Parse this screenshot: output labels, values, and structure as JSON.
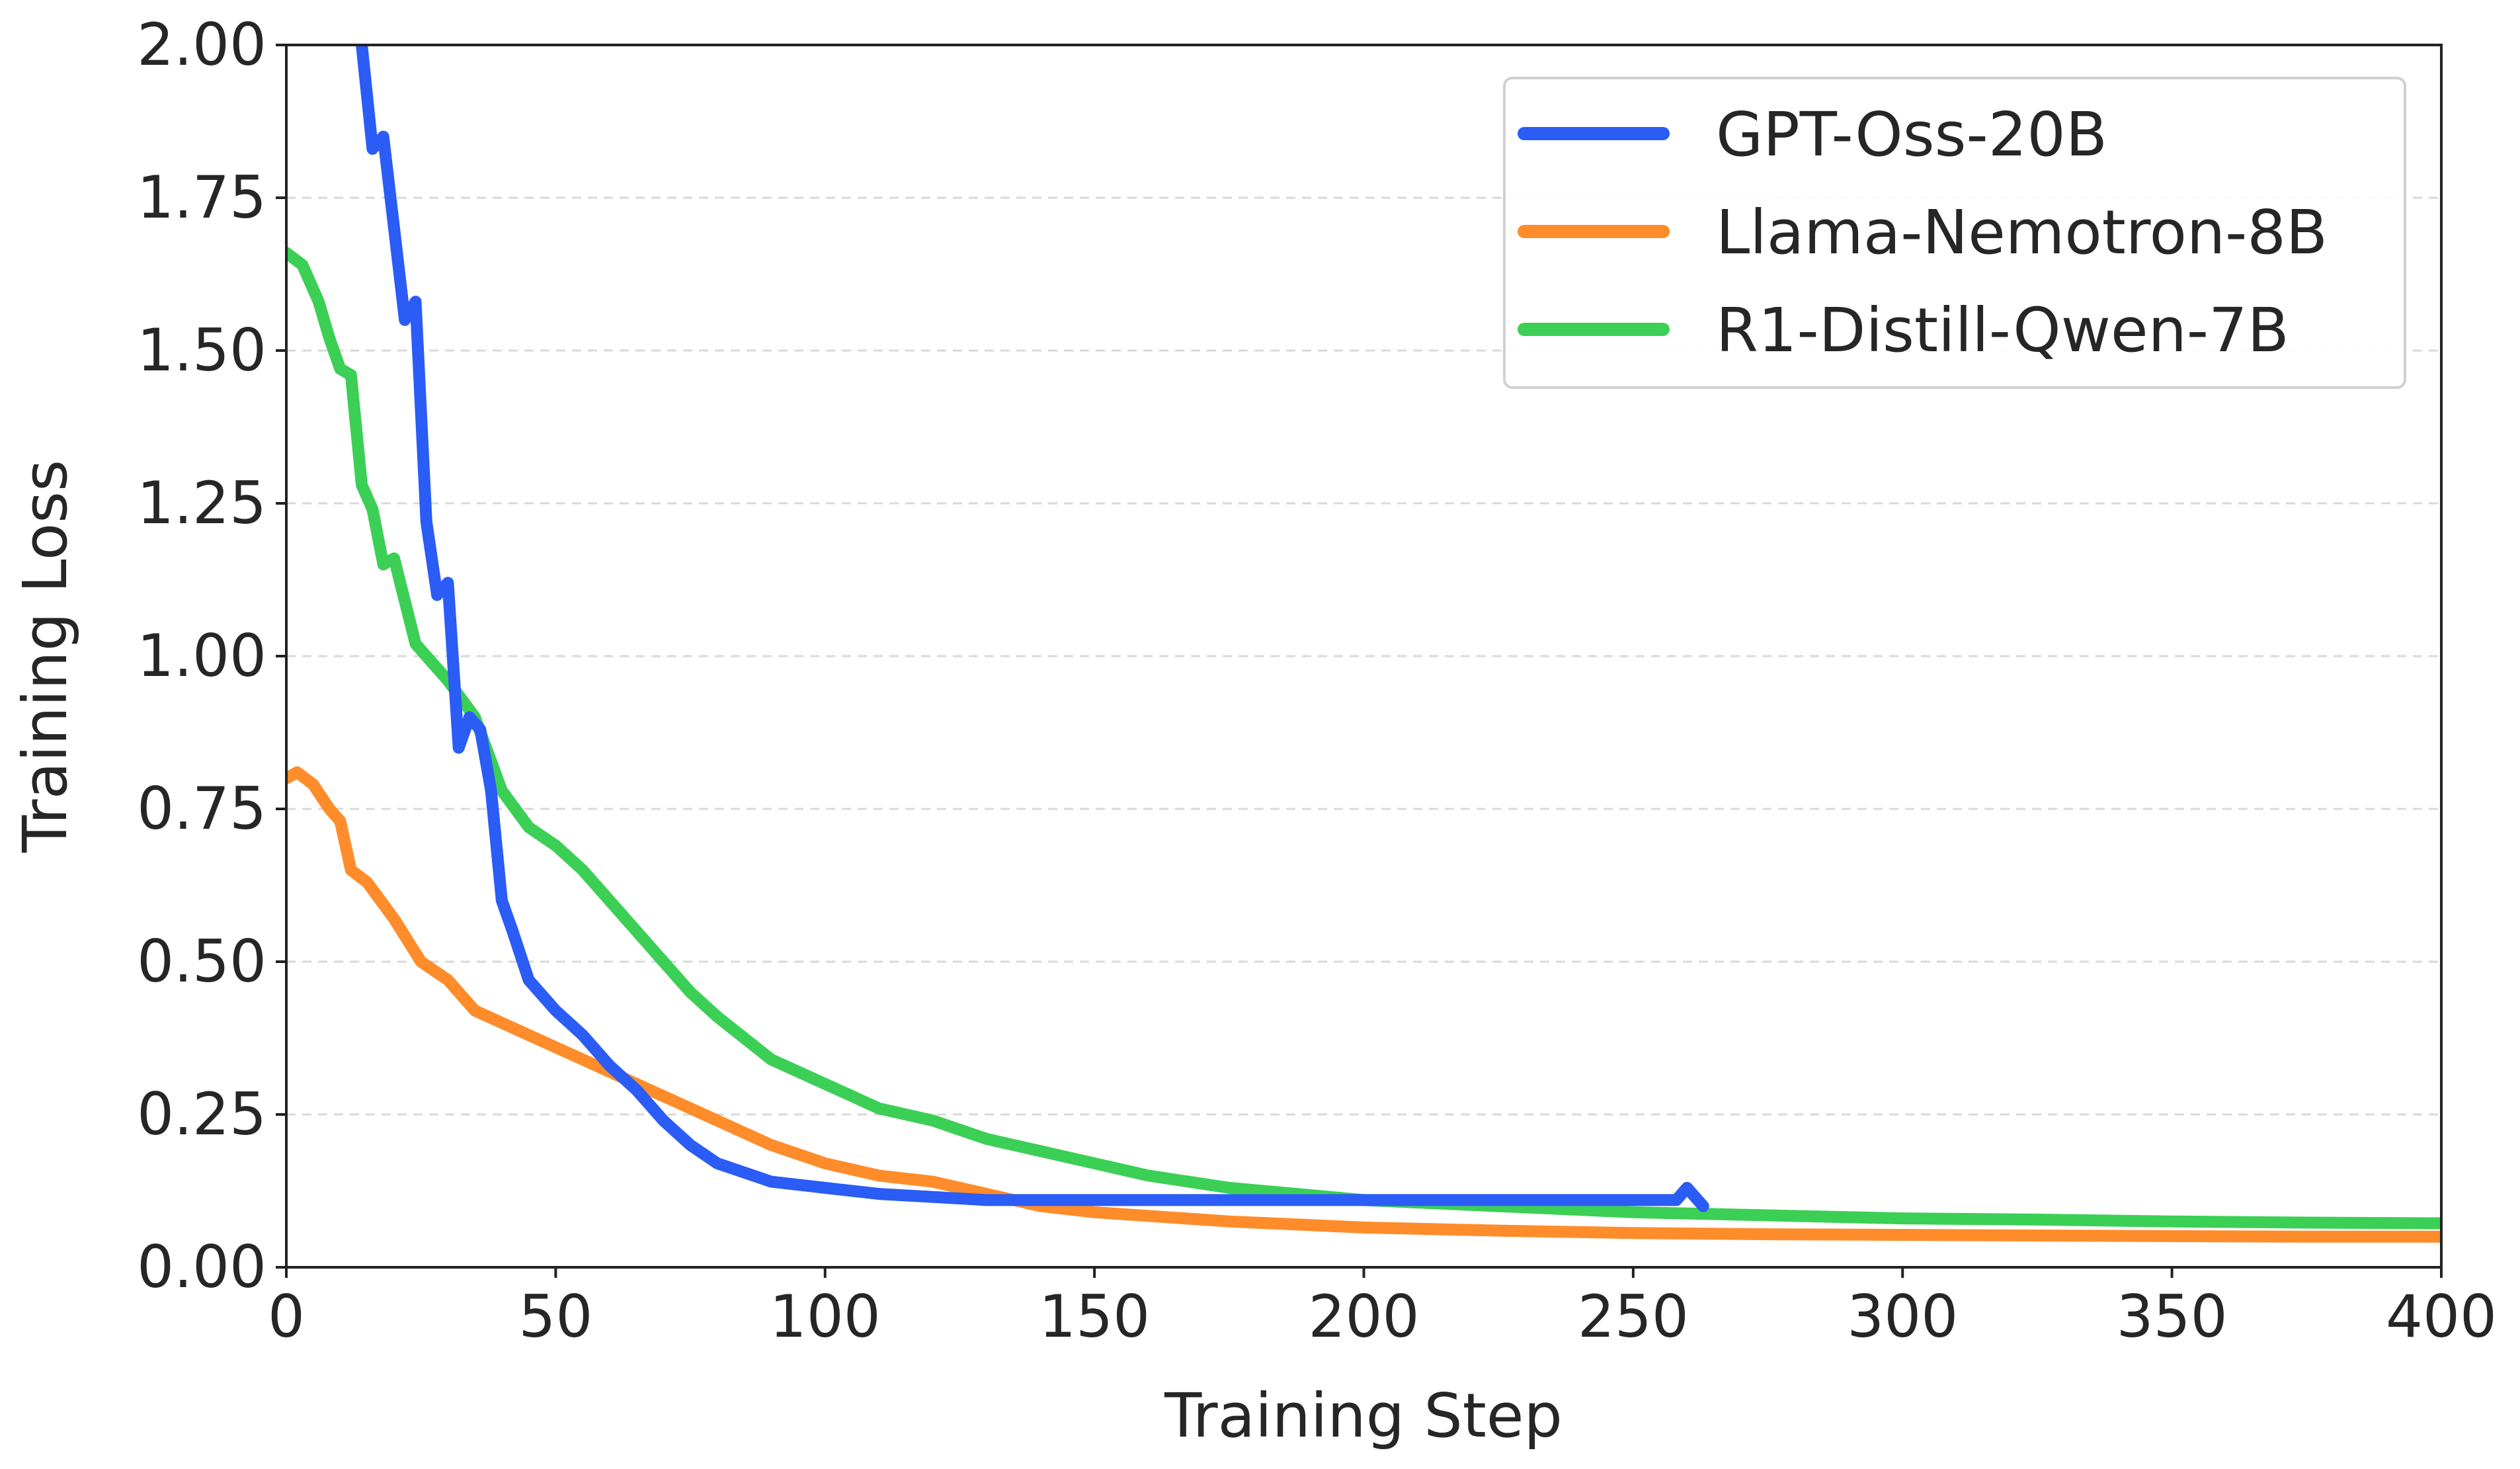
{
  "chart_data": {
    "type": "line",
    "title": "",
    "xlabel": "Training Step",
    "ylabel": "Training Loss",
    "xlim": [
      0,
      400
    ],
    "ylim": [
      0,
      2.0
    ],
    "x_ticks": [
      0,
      50,
      100,
      150,
      200,
      250,
      300,
      350,
      400
    ],
    "y_ticks": [
      0,
      0.25,
      0.5,
      0.75,
      1.0,
      1.25,
      1.5,
      1.75,
      2.0
    ],
    "x_tick_labels": [
      "0",
      "50",
      "100",
      "150",
      "200",
      "250",
      "300",
      "350",
      "400"
    ],
    "y_tick_labels": [
      "0.00",
      "0.25",
      "0.50",
      "0.75",
      "1.00",
      "1.25",
      "1.50",
      "1.75",
      "2.00"
    ],
    "grid": "horizontal dashed",
    "legend_position": "top-right",
    "series": [
      {
        "name": "GPT-Oss-20B",
        "color": "#2b5cf5",
        "x": [
          14,
          16,
          18,
          20,
          22,
          24,
          26,
          28,
          30,
          32,
          34,
          36,
          38,
          40,
          42,
          45,
          50,
          55,
          60,
          65,
          70,
          75,
          80,
          90,
          100,
          110,
          120,
          130,
          140,
          150,
          160,
          170,
          180,
          190,
          200,
          210,
          220,
          230,
          240,
          250,
          258,
          260,
          263
        ],
        "values": [
          2.0,
          1.83,
          1.85,
          1.7,
          1.55,
          1.58,
          1.22,
          1.1,
          1.12,
          0.85,
          0.9,
          0.88,
          0.78,
          0.6,
          0.55,
          0.47,
          0.42,
          0.38,
          0.33,
          0.29,
          0.24,
          0.2,
          0.17,
          0.14,
          0.13,
          0.12,
          0.115,
          0.11,
          0.11,
          0.11,
          0.11,
          0.11,
          0.11,
          0.11,
          0.11,
          0.11,
          0.11,
          0.11,
          0.11,
          0.11,
          0.11,
          0.13,
          0.1
        ]
      },
      {
        "name": "Llama-Nemotron-8B",
        "color": "#ff8c2a",
        "x": [
          0,
          2,
          5,
          8,
          10,
          12,
          15,
          20,
          25,
          30,
          35,
          40,
          50,
          60,
          70,
          80,
          90,
          100,
          110,
          120,
          130,
          140,
          150,
          175,
          200,
          225,
          250,
          275,
          300,
          325,
          350,
          375,
          400
        ],
        "values": [
          0.8,
          0.81,
          0.79,
          0.75,
          0.73,
          0.65,
          0.63,
          0.57,
          0.5,
          0.47,
          0.42,
          0.4,
          0.36,
          0.32,
          0.28,
          0.24,
          0.2,
          0.17,
          0.15,
          0.14,
          0.12,
          0.1,
          0.09,
          0.075,
          0.065,
          0.06,
          0.056,
          0.054,
          0.053,
          0.052,
          0.051,
          0.05,
          0.05
        ]
      },
      {
        "name": "R1-Distill-Qwen-7B",
        "color": "#3ccf55",
        "x": [
          0,
          3,
          6,
          8,
          10,
          12,
          14,
          16,
          18,
          20,
          22,
          24,
          26,
          28,
          30,
          35,
          40,
          45,
          50,
          55,
          60,
          65,
          70,
          75,
          80,
          90,
          100,
          110,
          120,
          130,
          140,
          150,
          160,
          175,
          200,
          225,
          250,
          275,
          300,
          325,
          350,
          375,
          400
        ],
        "values": [
          1.66,
          1.64,
          1.58,
          1.52,
          1.47,
          1.46,
          1.28,
          1.24,
          1.15,
          1.16,
          1.09,
          1.02,
          1.0,
          0.98,
          0.96,
          0.9,
          0.78,
          0.72,
          0.69,
          0.65,
          0.6,
          0.55,
          0.5,
          0.45,
          0.41,
          0.34,
          0.3,
          0.26,
          0.24,
          0.21,
          0.19,
          0.17,
          0.15,
          0.13,
          0.11,
          0.1,
          0.09,
          0.085,
          0.08,
          0.078,
          0.075,
          0.073,
          0.072
        ]
      }
    ]
  }
}
